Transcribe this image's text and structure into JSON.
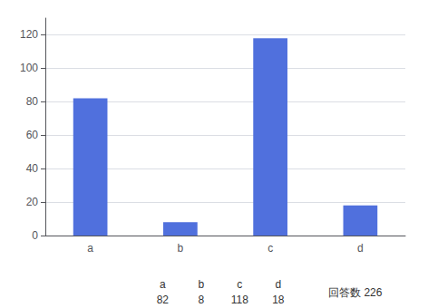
{
  "chart_data": {
    "type": "bar",
    "categories": [
      "a",
      "b",
      "c",
      "d"
    ],
    "values": [
      82,
      8,
      118,
      18
    ],
    "ylim": [
      0,
      130
    ],
    "yticks": [
      0,
      20,
      40,
      60,
      80,
      100,
      120
    ],
    "grid": true,
    "annotations": [
      [
        "a",
        "b",
        "c",
        "d"
      ],
      [
        "82",
        "8",
        "118",
        "18"
      ],
      [
        "回答数 226"
      ]
    ]
  }
}
